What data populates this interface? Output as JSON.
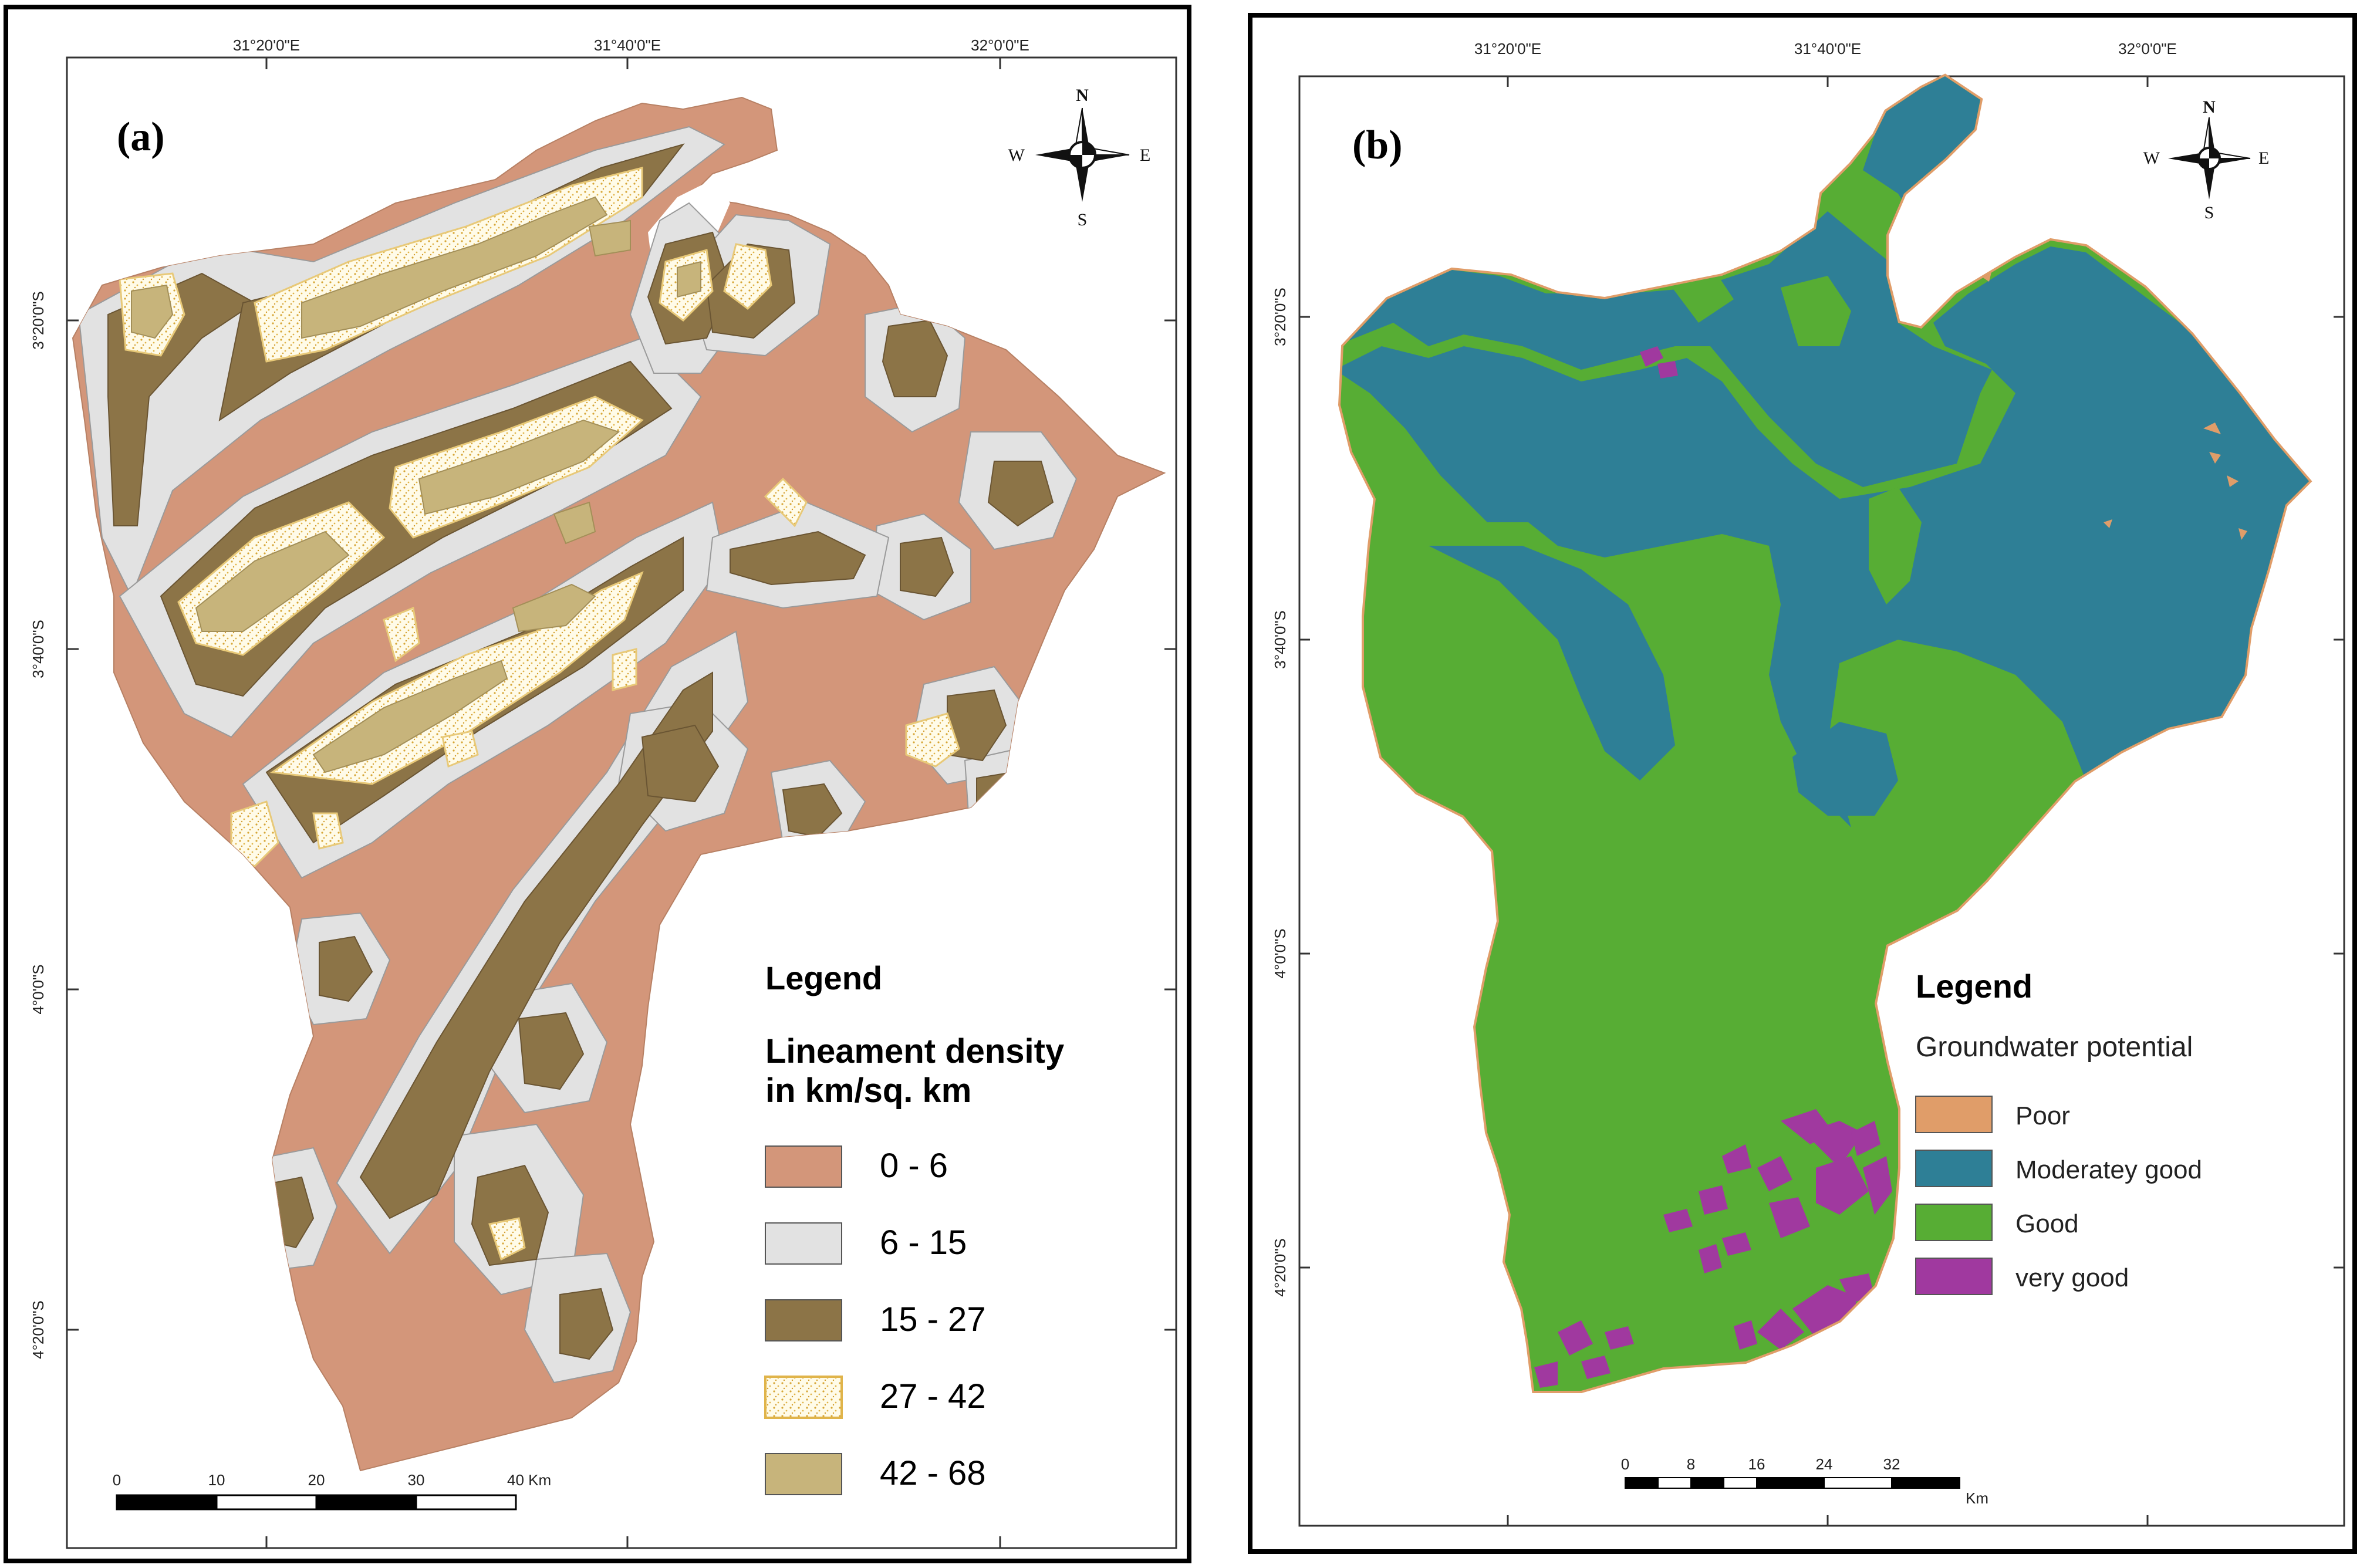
{
  "panels": [
    {
      "label": "(a)",
      "lon_labels": [
        "31°20'0\"E",
        "31°40'0\"E",
        "32°0'0\"E"
      ],
      "lat_labels": [
        "3°20'0\"S",
        "3°40'0\"S",
        "4°0'0\"S",
        "4°20'0\"S"
      ],
      "compass": {
        "n": "N",
        "s": "S",
        "e": "E",
        "w": "W"
      },
      "legend": {
        "title": "Legend",
        "subtitle_line1": "Lineament density",
        "subtitle_line2": "in km/sq. km",
        "classes": [
          {
            "label": "0 - 6",
            "color": "#d3967a"
          },
          {
            "label": "6 - 15",
            "color": "#e2e2e2"
          },
          {
            "label": "15 - 27",
            "color": "#8c7447"
          },
          {
            "label": "27 - 42",
            "color": "#fffbe8"
          },
          {
            "label": "42 - 68",
            "color": "#c7b47b"
          }
        ]
      },
      "scale": {
        "ticks": [
          "0",
          "10",
          "20",
          "30",
          "40 Km"
        ]
      }
    },
    {
      "label": "(b)",
      "lon_labels": [
        "31°20'0\"E",
        "31°40'0\"E",
        "32°0'0\"E"
      ],
      "lat_labels": [
        "3°20'0\"S",
        "3°40'0\"S",
        "4°0'0\"S",
        "4°20'0\"S"
      ],
      "compass": {
        "n": "N",
        "s": "S",
        "e": "E",
        "w": "W"
      },
      "legend": {
        "title": "Legend",
        "subtitle": "Groundwater potential",
        "classes": [
          {
            "label": "Poor",
            "color": "#e09d69"
          },
          {
            "label": "Moderatey good",
            "color": "#2e7f96"
          },
          {
            "label": "Good",
            "color": "#57ad34"
          },
          {
            "label": "very good",
            "color": "#a0399f"
          }
        ]
      },
      "scale": {
        "ticks": [
          "0",
          "8",
          "16",
          "24",
          "32"
        ],
        "unit": "Km"
      }
    }
  ]
}
